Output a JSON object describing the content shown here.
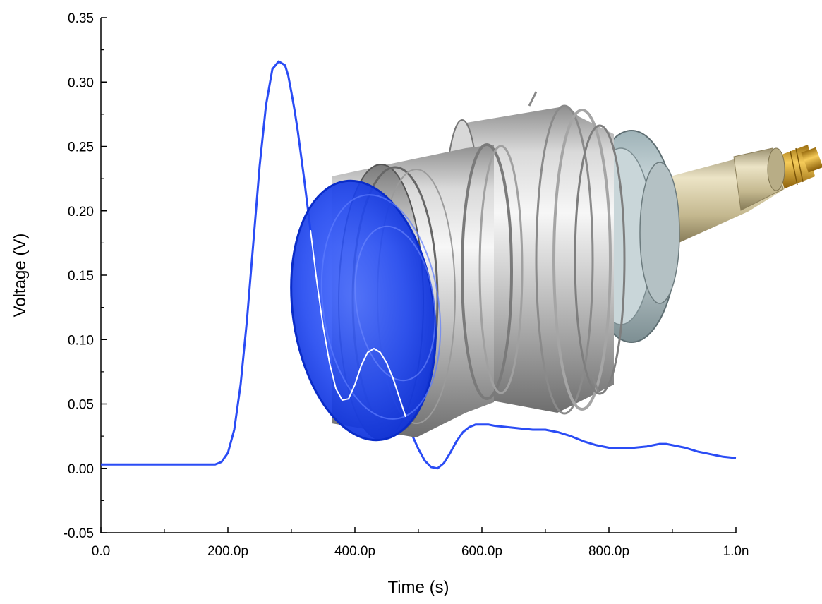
{
  "chart_data": {
    "type": "line",
    "xlabel": "Time (s)",
    "ylabel": "Voltage (V)",
    "xlim": [
      0,
      1e-09
    ],
    "ylim": [
      -0.05,
      0.35
    ],
    "x_ticks": [
      0,
      2e-10,
      4e-10,
      6e-10,
      8e-10,
      1e-09
    ],
    "x_tick_labels": [
      "0.0",
      "200.0p",
      "400.0p",
      "600.0p",
      "800.0p",
      "1.0n"
    ],
    "y_ticks": [
      -0.05,
      0,
      0.05,
      0.1,
      0.15,
      0.2,
      0.25,
      0.3,
      0.35
    ],
    "y_tick_labels": [
      "-0.05",
      "0.00",
      "0.05",
      "0.10",
      "0.15",
      "0.20",
      "0.25",
      "0.30",
      "0.35"
    ],
    "grid": false,
    "series": [
      {
        "color": "#2a4cf5",
        "x": [
          0,
          2e-11,
          4e-11,
          6e-11,
          8e-11,
          1e-10,
          1.2e-10,
          1.4e-10,
          1.6e-10,
          1.8e-10,
          1.9e-10,
          2e-10,
          2.1e-10,
          2.2e-10,
          2.3e-10,
          2.4e-10,
          2.5e-10,
          2.6e-10,
          2.7e-10,
          2.8e-10,
          2.9e-10,
          2.95e-10,
          3e-10,
          3.05e-10,
          3.1e-10,
          3.2e-10,
          3.3e-10,
          3.4e-10,
          3.5e-10,
          3.6e-10,
          3.7e-10,
          3.8e-10,
          3.9e-10,
          4e-10,
          4.1e-10,
          4.2e-10,
          4.3e-10,
          4.4e-10,
          4.5e-10,
          4.6e-10,
          4.7e-10,
          4.8e-10,
          4.9e-10,
          5e-10,
          5.1e-10,
          5.2e-10,
          5.3e-10,
          5.4e-10,
          5.5e-10,
          5.6e-10,
          5.7e-10,
          5.8e-10,
          5.9e-10,
          6e-10,
          6.1e-10,
          6.2e-10,
          6.4e-10,
          6.6e-10,
          6.8e-10,
          7e-10,
          7.2e-10,
          7.4e-10,
          7.6e-10,
          7.8e-10,
          8e-10,
          8.2e-10,
          8.4e-10,
          8.6e-10,
          8.7e-10,
          8.8e-10,
          8.9e-10,
          9e-10,
          9.2e-10,
          9.4e-10,
          9.6e-10,
          9.8e-10,
          1e-09
        ],
        "y": [
          0.003,
          0.003,
          0.003,
          0.003,
          0.003,
          0.003,
          0.003,
          0.003,
          0.003,
          0.003,
          0.005,
          0.012,
          0.03,
          0.065,
          0.115,
          0.175,
          0.235,
          0.282,
          0.31,
          0.316,
          0.313,
          0.305,
          0.292,
          0.278,
          0.262,
          0.225,
          0.185,
          0.145,
          0.11,
          0.082,
          0.062,
          0.053,
          0.054,
          0.065,
          0.08,
          0.09,
          0.093,
          0.09,
          0.082,
          0.07,
          0.055,
          0.04,
          0.026,
          0.015,
          0.006,
          0.001,
          0.0,
          0.004,
          0.012,
          0.021,
          0.028,
          0.032,
          0.034,
          0.034,
          0.034,
          0.033,
          0.032,
          0.031,
          0.03,
          0.03,
          0.028,
          0.025,
          0.021,
          0.018,
          0.016,
          0.016,
          0.016,
          0.017,
          0.018,
          0.019,
          0.019,
          0.018,
          0.016,
          0.013,
          0.011,
          0.009,
          0.008
        ]
      }
    ]
  },
  "icons": {
    "probe": "coaxial-detector-probe-illustration"
  }
}
